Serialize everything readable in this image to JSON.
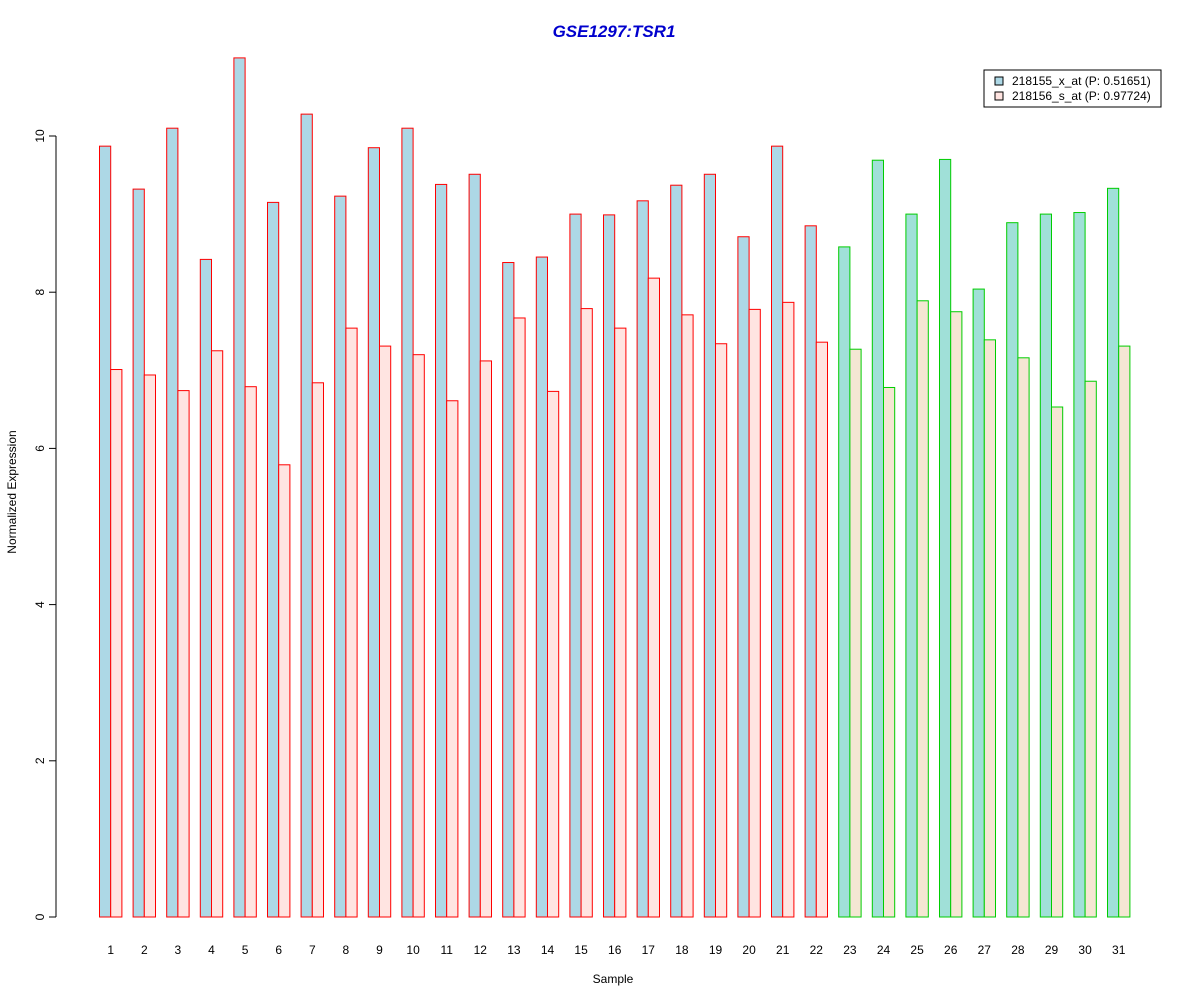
{
  "chart_data": {
    "type": "bar",
    "title": "GSE1297:TSR1",
    "xlabel": "Sample",
    "ylabel": "Normalized Expression",
    "ylim": [
      0,
      11
    ],
    "yticks": [
      0,
      2,
      4,
      6,
      8,
      10
    ],
    "categories": [
      "1",
      "2",
      "3",
      "4",
      "5",
      "6",
      "7",
      "8",
      "9",
      "10",
      "11",
      "12",
      "13",
      "14",
      "15",
      "16",
      "17",
      "18",
      "19",
      "20",
      "21",
      "22",
      "23",
      "24",
      "25",
      "26",
      "27",
      "28",
      "29",
      "30",
      "31"
    ],
    "series": [
      {
        "name": "218155_x_at (P: 0.51651)",
        "values": [
          9.87,
          9.32,
          10.1,
          8.42,
          11.0,
          9.15,
          10.28,
          9.23,
          9.85,
          10.1,
          9.38,
          9.51,
          8.38,
          8.45,
          9.0,
          8.99,
          9.17,
          9.37,
          9.51,
          8.71,
          9.87,
          8.85,
          8.58,
          9.69,
          9.0,
          9.7,
          8.04,
          8.89,
          9.0,
          9.02,
          9.33
        ]
      },
      {
        "name": "218156_s_at (P: 0.97724)",
        "values": [
          7.01,
          6.94,
          6.74,
          7.25,
          6.79,
          5.79,
          6.84,
          7.54,
          7.31,
          7.2,
          6.61,
          7.12,
          7.67,
          6.73,
          7.79,
          7.54,
          8.18,
          7.71,
          7.34,
          7.78,
          7.87,
          7.36,
          7.27,
          6.78,
          7.89,
          7.75,
          7.39,
          7.16,
          6.53,
          6.86,
          7.31
        ]
      }
    ],
    "groups": [
      {
        "from": 1,
        "to": 22,
        "border_color": "#ff0000",
        "fills": [
          "#add8e6",
          "#ffe4e1"
        ]
      },
      {
        "from": 23,
        "to": 31,
        "border_color": "#00cd00",
        "fills": [
          "#a0e0d8",
          "#f5e6d3"
        ]
      }
    ],
    "legend": {
      "position": "top-right",
      "fills": [
        "#add8e6",
        "#ffe4e1"
      ]
    },
    "colors": {
      "title": "#0000cd",
      "axis": "#000000"
    },
    "grid": false
  }
}
